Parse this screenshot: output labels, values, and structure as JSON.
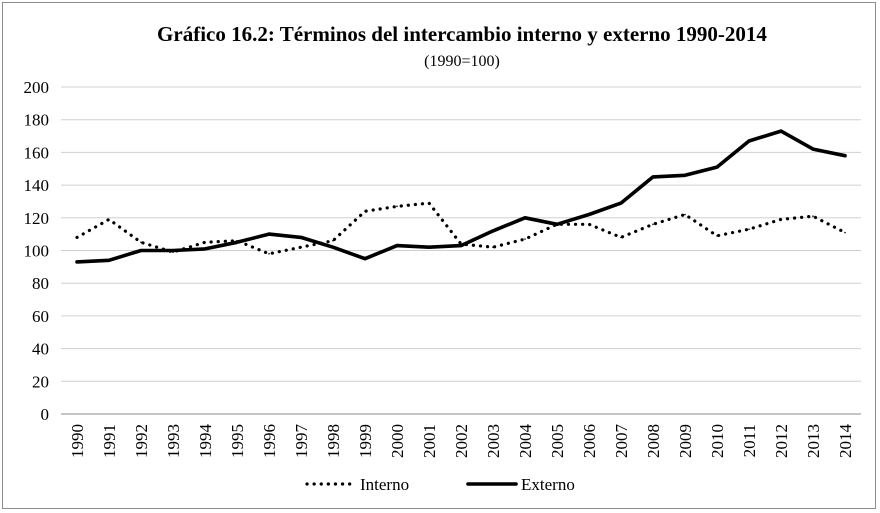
{
  "chart_data": {
    "type": "line",
    "title": "Gráfico 16.2: Términos del intercambio interno y externo  1990-2014",
    "subtitle": "(1990=100)",
    "xlabel": "",
    "ylabel": "",
    "ylim": [
      0,
      200
    ],
    "yticks": [
      "0",
      "20",
      "40",
      "60",
      "80",
      "100",
      "120",
      "140",
      "160",
      "180",
      "200"
    ],
    "grid": true,
    "legend_position": "bottom",
    "categories": [
      "1990",
      "1991",
      "1992",
      "1993",
      "1994",
      "1995",
      "1996",
      "1997",
      "1998",
      "1999",
      "2000",
      "2001",
      "2002",
      "2003",
      "2004",
      "2005",
      "2006",
      "2007",
      "2008",
      "2009",
      "2010",
      "2011",
      "2012",
      "2013",
      "2014"
    ],
    "series": [
      {
        "name": "Interno",
        "style": "dotted",
        "color": "#000000",
        "values": [
          108,
          119,
          105,
          99,
          105,
          106,
          98,
          102,
          106,
          124,
          127,
          129,
          104,
          102,
          107,
          116,
          116,
          108,
          116,
          122,
          109,
          113,
          119,
          121,
          111
        ]
      },
      {
        "name": "Externo",
        "style": "solid",
        "color": "#000000",
        "values": [
          93,
          94,
          100,
          100,
          101,
          105,
          110,
          108,
          102,
          95,
          103,
          102,
          103,
          112,
          120,
          116,
          122,
          129,
          145,
          146,
          151,
          167,
          173,
          162,
          158
        ]
      }
    ]
  }
}
